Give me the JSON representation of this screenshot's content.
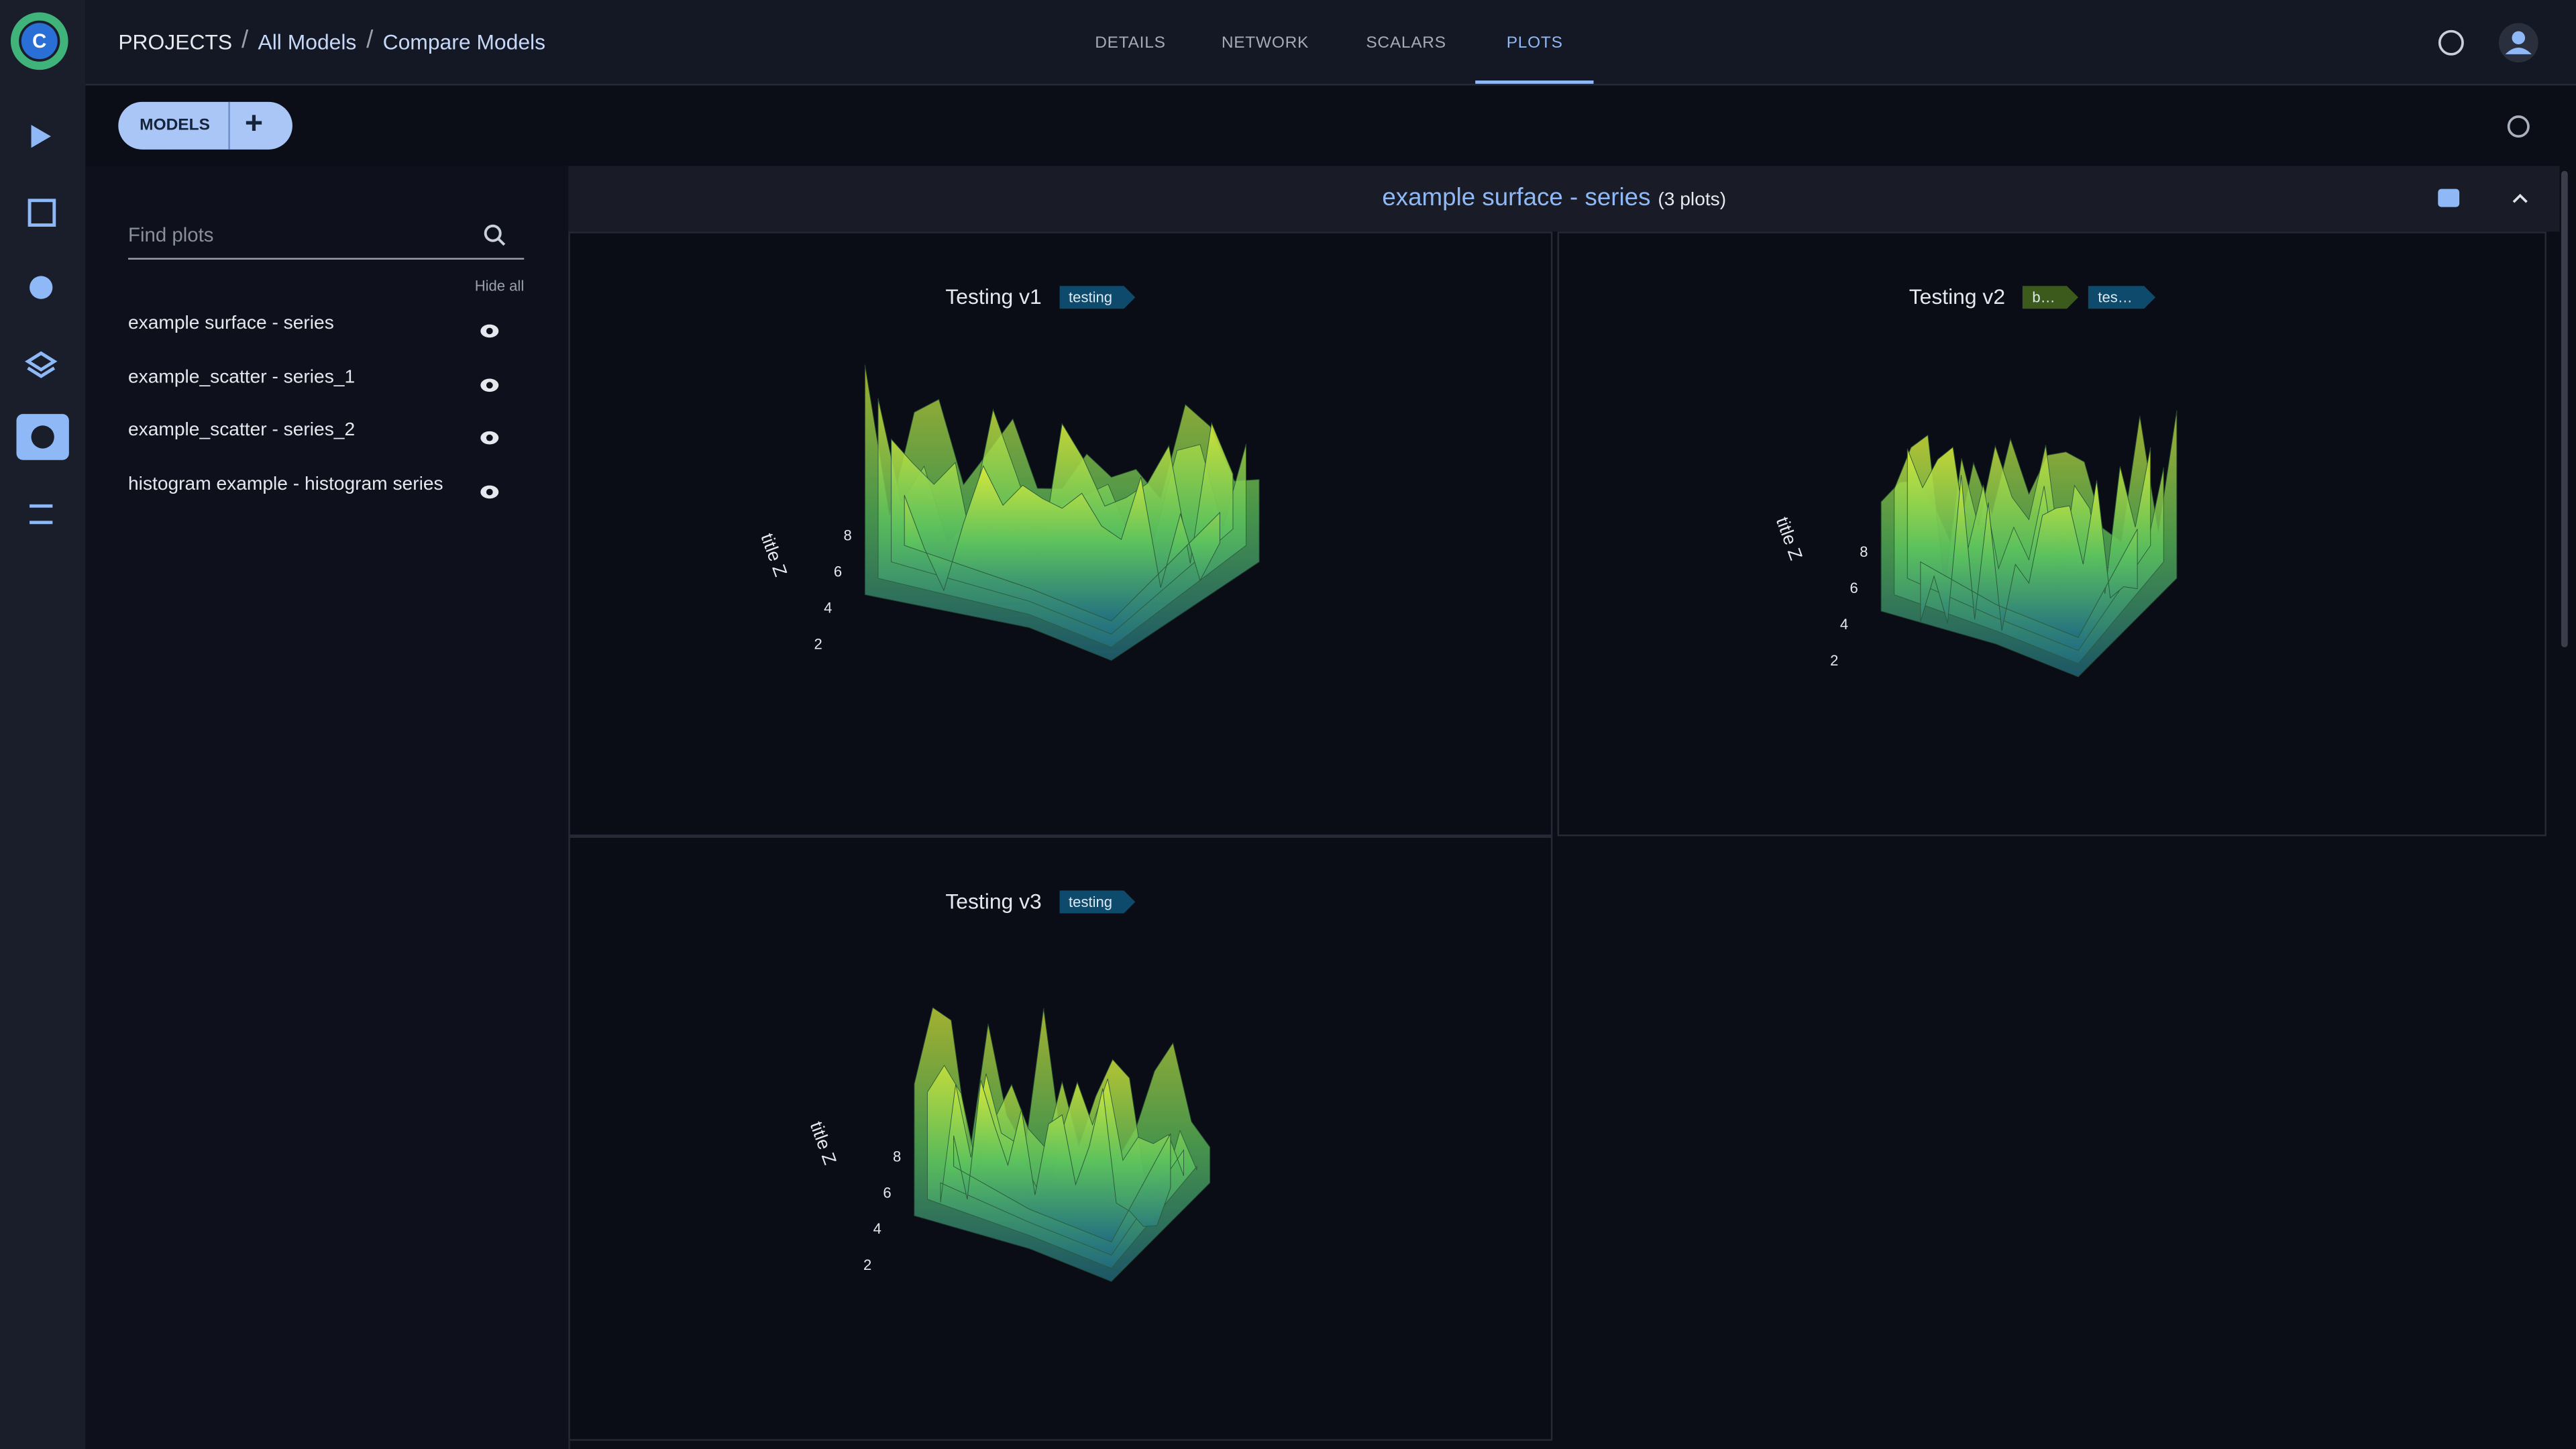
{
  "header": {
    "breadcrumbs": [
      "PROJECTS",
      "All Models",
      "Compare Models"
    ],
    "tabs": [
      {
        "label": "DETAILS"
      },
      {
        "label": "NETWORK"
      },
      {
        "label": "SCALARS"
      },
      {
        "label": "PLOTS",
        "active": true
      }
    ]
  },
  "toolbar": {
    "models_button": "MODELS"
  },
  "sidebar": {
    "search_placeholder": "Find plots",
    "hide_all": "Hide all",
    "plots": [
      "example surface - series",
      "example_scatter - series_1",
      "example_scatter - series_2",
      "histogram example - histogram series"
    ]
  },
  "section": {
    "title": "example surface - series",
    "count": "(3 plots)"
  },
  "plots": [
    {
      "title": "Testing v1",
      "tags": [
        {
          "label": "testing",
          "color": "#0e4a6b"
        }
      ],
      "z_axis_title": "title Z",
      "z_ticks": [
        2,
        4,
        6,
        8
      ]
    },
    {
      "title": "Testing v2",
      "tags": [
        {
          "label": "b…",
          "color": "#3b5a1c"
        },
        {
          "label": "tes…",
          "color": "#0e4a6b"
        }
      ],
      "z_axis_title": "title Z",
      "z_ticks": [
        2,
        4,
        6,
        8
      ]
    },
    {
      "title": "Testing v3",
      "tags": [
        {
          "label": "testing",
          "color": "#0e4a6b"
        }
      ],
      "z_axis_title": "title Z",
      "z_ticks": [
        2,
        4,
        6,
        8
      ]
    }
  ]
}
